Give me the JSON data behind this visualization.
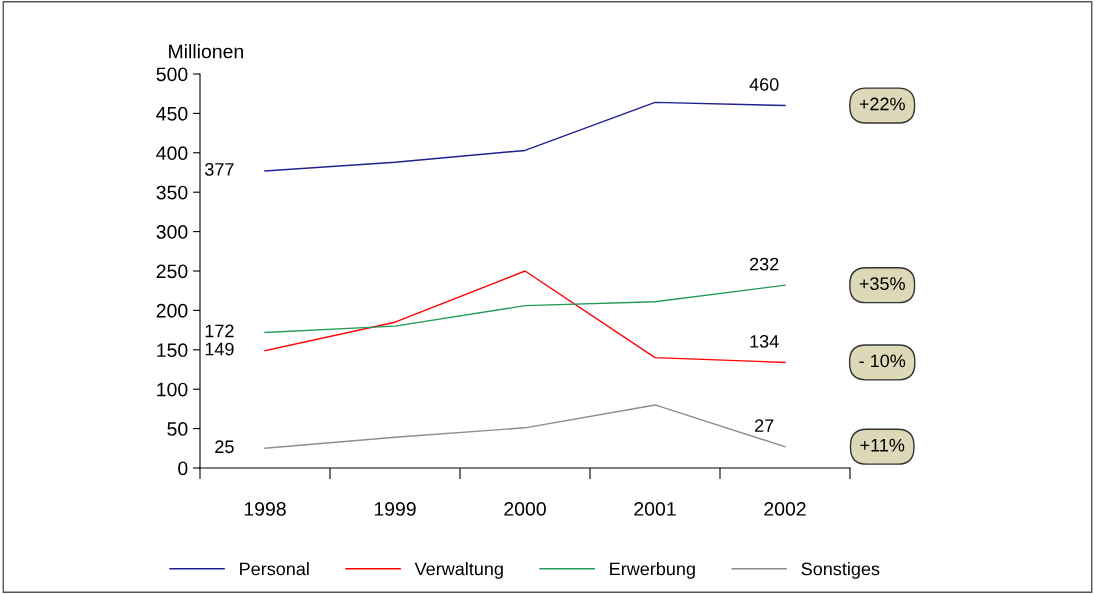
{
  "chart_data": {
    "type": "line",
    "ylabel": "Millionen",
    "categories": [
      "1998",
      "1999",
      "2000",
      "2001",
      "2002"
    ],
    "series": [
      {
        "name": "Personal",
        "color": "#1f1f8f",
        "values": [
          377,
          388,
          403,
          464,
          460
        ],
        "value_labels": [
          "377",
          null,
          null,
          null,
          "460"
        ]
      },
      {
        "name": "Verwaltung",
        "color": "#ff0000",
        "values": [
          149,
          185,
          250,
          140,
          134
        ],
        "value_labels": [
          "149",
          null,
          null,
          null,
          "134"
        ]
      },
      {
        "name": "Erwerbung",
        "color": "#239a5a",
        "values": [
          172,
          180,
          206,
          211,
          232
        ],
        "value_labels": [
          "172",
          null,
          null,
          null,
          "232"
        ]
      },
      {
        "name": "Sonstiges",
        "color": "#8c8c8c",
        "values": [
          25,
          39,
          51,
          80,
          27
        ],
        "value_labels": [
          "25",
          null,
          null,
          null,
          "27"
        ]
      }
    ],
    "ylim": [
      0,
      500
    ],
    "yticks": [
      0,
      50,
      100,
      150,
      200,
      250,
      300,
      350,
      400,
      450,
      500
    ],
    "grid": false,
    "legend": "bottom",
    "marker": "none",
    "line_style": "solid",
    "annotations": [
      "+22%",
      "+35%",
      "- 10%",
      "+11%"
    ]
  }
}
